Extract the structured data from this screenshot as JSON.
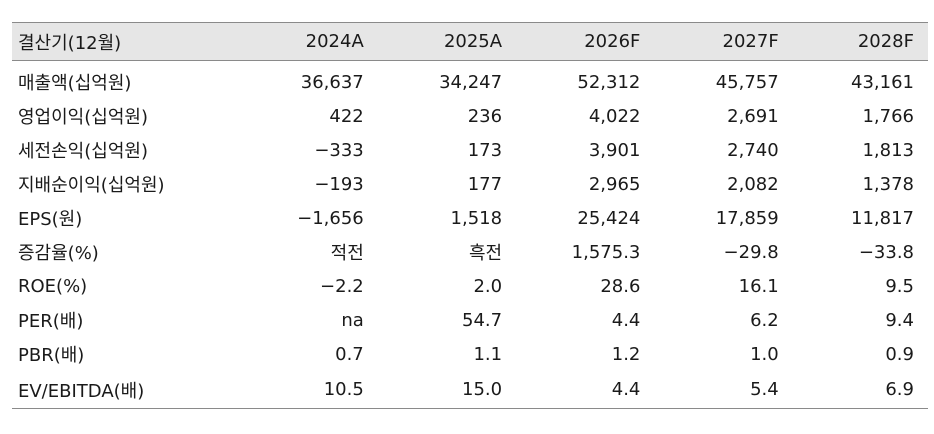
{
  "table": {
    "header": [
      "결산기(12월)",
      "2024A",
      "2025A",
      "2026F",
      "2027F",
      "2028F"
    ],
    "rows": [
      [
        "매출액(십억원)",
        "36,637",
        "34,247",
        "52,312",
        "45,757",
        "43,161"
      ],
      [
        "영업이익(십억원)",
        "422",
        "236",
        "4,022",
        "2,691",
        "1,766"
      ],
      [
        "세전손익(십억원)",
        "−333",
        "173",
        "3,901",
        "2,740",
        "1,813"
      ],
      [
        "지배순이익(십억원)",
        "−193",
        "177",
        "2,965",
        "2,082",
        "1,378"
      ],
      [
        "EPS(원)",
        "−1,656",
        "1,518",
        "25,424",
        "17,859",
        "11,817"
      ],
      [
        "증감율(%)",
        "적전",
        "흑전",
        "1,575.3",
        "−29.8",
        "−33.8"
      ],
      [
        "ROE(%)",
        "−2.2",
        "2.0",
        "28.6",
        "16.1",
        "9.5"
      ],
      [
        "PER(배)",
        "na",
        "54.7",
        "4.4",
        "6.2",
        "9.4"
      ],
      [
        "PBR(배)",
        "0.7",
        "1.1",
        "1.2",
        "1.0",
        "0.9"
      ],
      [
        "EV/EBITDA(배)",
        "10.5",
        "15.0",
        "4.4",
        "5.4",
        "6.9"
      ]
    ]
  }
}
